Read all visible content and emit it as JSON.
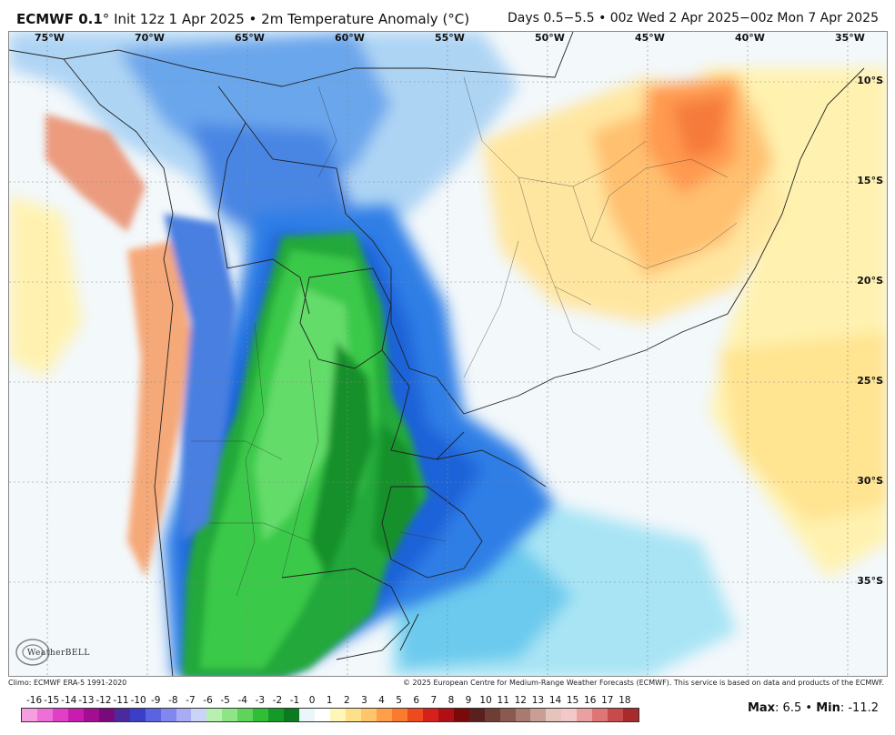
{
  "header": {
    "model": "ECMWF 0.1",
    "degree": "°",
    "init": "Init 12z 1 Apr 2025",
    "bullet": "•",
    "field": "2m Temperature Anomaly (°C)",
    "valid": "Days 0.5−5.5 • 00z Wed 2 Apr 2025−00z Mon 7 Apr 2025"
  },
  "map": {
    "lon_labels": [
      "75°W",
      "70°W",
      "65°W",
      "60°W",
      "55°W",
      "50°W",
      "45°W",
      "40°W",
      "35°W"
    ],
    "lat_labels": [
      "10°S",
      "15°S",
      "20°S",
      "25°S",
      "30°S",
      "35°S"
    ],
    "logo_text": "WeatherBELL"
  },
  "footer": {
    "climo": "Climo: ECMWF ERA-5 1991-2020",
    "copyright": "© 2025 European Centre for Medium-Range Weather Forecasts (ECMWF). This service is based on data and products of the ECMWF."
  },
  "scale": {
    "ticks": [
      "-16",
      "-15",
      "-14",
      "-13",
      "-12",
      "-11",
      "-10",
      "-9",
      "-8",
      "-7",
      "-6",
      "-5",
      "-4",
      "-3",
      "-2",
      "-1",
      "0",
      "1",
      "2",
      "3",
      "4",
      "5",
      "6",
      "7",
      "8",
      "9",
      "10",
      "11",
      "12",
      "13",
      "14",
      "15",
      "16",
      "17",
      "18"
    ],
    "colors": [
      "#f59ee0",
      "#ee70d7",
      "#e03fc6",
      "#c91bb0",
      "#a30d92",
      "#7a0a7a",
      "#4b2aa0",
      "#3b3ec8",
      "#5a63e0",
      "#8187ee",
      "#a8acf4",
      "#c9d4f7",
      "#b8f0b0",
      "#8fe585",
      "#5ed55a",
      "#2fbf35",
      "#159a2a",
      "#0d7a20",
      "#eaf6fb",
      "#ffffff",
      "#fff6b8",
      "#ffe08a",
      "#ffc56a",
      "#ff9f4a",
      "#fa7a2e",
      "#ee4a1e",
      "#d6201a",
      "#b01014",
      "#7a0a0a",
      "#5a1f1f",
      "#6e3d36",
      "#8a5a50",
      "#a87a70",
      "#c99e95",
      "#e6c4bc",
      "#f2c8c8",
      "#eba0a0",
      "#de7676",
      "#c94a4a",
      "#a82a2a"
    ]
  },
  "stats": {
    "max_label": "Max",
    "max_value": ": 6.5",
    "sep": "•",
    "min_label": "Min",
    "min_value": ": -11.2"
  }
}
